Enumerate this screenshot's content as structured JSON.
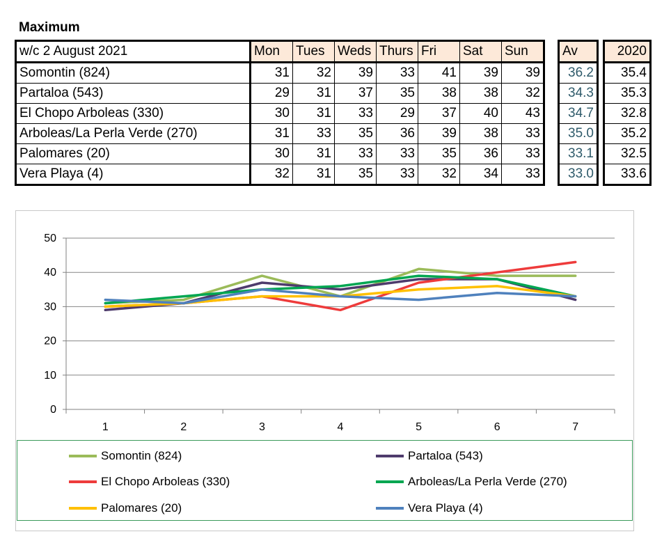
{
  "title": "Maximum",
  "table": {
    "header_label": "w/c 2 August 2021",
    "days": [
      "Mon",
      "Tues",
      "Weds",
      "Thurs",
      "Fri",
      "Sat",
      "Sun"
    ],
    "av_label": "Av",
    "year_label": "2020",
    "rows": [
      {
        "name": "Somontin (824)",
        "values": [
          "31",
          "32",
          "39",
          "33",
          "41",
          "39",
          "39"
        ],
        "av": "36.2",
        "prev": "35.4"
      },
      {
        "name": "Partaloa (543)",
        "values": [
          "29",
          "31",
          "37",
          "35",
          "38",
          "38",
          "32"
        ],
        "av": "34.3",
        "prev": "35.3"
      },
      {
        "name": "El Chopo  Arboleas (330)",
        "values": [
          "30",
          "31",
          "33",
          "29",
          "37",
          "40",
          "43"
        ],
        "av": "34.7",
        "prev": "32.8"
      },
      {
        "name": "Arboleas/La Perla Verde (270)",
        "values": [
          "31",
          "33",
          "35",
          "36",
          "39",
          "38",
          "33"
        ],
        "av": "35.0",
        "prev": "35.2"
      },
      {
        "name": "Palomares (20)",
        "values": [
          "30",
          "31",
          "33",
          "33",
          "35",
          "36",
          "33"
        ],
        "av": "33.1",
        "prev": "32.5"
      },
      {
        "name": "Vera Playa (4)",
        "values": [
          "32",
          "31",
          "35",
          "33",
          "32",
          "34",
          "33"
        ],
        "av": "33.0",
        "prev": "33.6"
      }
    ]
  },
  "chart_data": {
    "type": "line",
    "x": [
      1,
      2,
      3,
      4,
      5,
      6,
      7
    ],
    "x_tick_labels": [
      "1",
      "2",
      "3",
      "4",
      "5",
      "6",
      "7"
    ],
    "y_tick_labels": [
      "0",
      "10",
      "20",
      "30",
      "40",
      "50"
    ],
    "ylim": [
      0,
      50
    ],
    "grid": true,
    "legend_position": "bottom",
    "series": [
      {
        "name": "Somontin (824)",
        "color": "#9bbb59",
        "values": [
          31,
          32,
          39,
          33,
          41,
          39,
          39
        ]
      },
      {
        "name": "Partaloa (543)",
        "color": "#4e3b6c",
        "values": [
          29,
          31,
          37,
          35,
          38,
          38,
          32
        ]
      },
      {
        "name": "El Chopo  Arboleas (330)",
        "color": "#ee3b3b",
        "values": [
          30,
          31,
          33,
          29,
          37,
          40,
          43
        ]
      },
      {
        "name": "Arboleas/La Perla Verde (270)",
        "color": "#00a651",
        "values": [
          31,
          33,
          35,
          36,
          39,
          38,
          33
        ]
      },
      {
        "name": "Palomares (20)",
        "color": "#ffc000",
        "values": [
          30,
          31,
          33,
          33,
          35,
          36,
          33
        ]
      },
      {
        "name": "Vera Playa (4)",
        "color": "#4f81bd",
        "values": [
          32,
          31,
          35,
          33,
          32,
          34,
          33
        ]
      }
    ]
  }
}
